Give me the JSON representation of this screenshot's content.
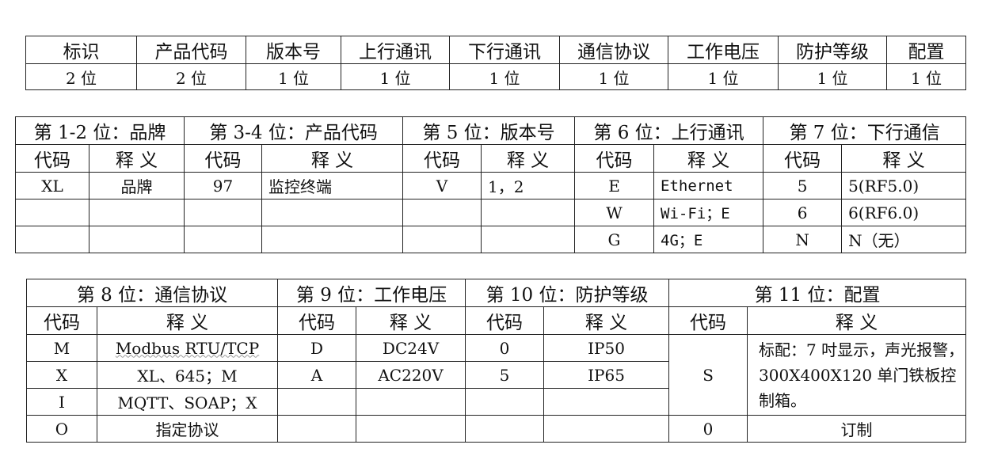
{
  "table1": {
    "headers": [
      "标识",
      "产品代码",
      "版本号",
      "上行通讯",
      "下行通讯",
      "通信协议",
      "工作电压",
      "防护等级",
      "配置"
    ],
    "values": [
      "2 位",
      "2 位",
      "1 位",
      "1 位",
      "1 位",
      "1 位",
      "1 位",
      "1 位",
      "1 位"
    ]
  },
  "table2": {
    "groups": [
      "第 1-2 位：品牌",
      "第 3-4 位：产品代码",
      "第 5 位：版本号",
      "第 6 位：上行通讯",
      "第 7 位：下行通信"
    ],
    "code_label": "代码",
    "meaning_label": "释 义",
    "rows": [
      [
        "XL",
        "品牌",
        "97",
        "监控终端",
        "V",
        "1，2",
        "E",
        "Ethernet",
        "5",
        "5(RF5.0)"
      ],
      [
        "",
        "",
        "",
        "",
        "",
        "",
        "W",
        "Wi-Fi；E",
        "6",
        "6(RF6.0)"
      ],
      [
        "",
        "",
        "",
        "",
        "",
        "",
        "G",
        "4G；E",
        "N",
        "N（无）"
      ]
    ]
  },
  "table3": {
    "groups": [
      "第 8 位：通信协议",
      "第 9 位：工作电压",
      "第 10 位：防护等级",
      "第 11 位：配置"
    ],
    "code_label": "代码",
    "meaning_label": "释 义",
    "protocol": [
      [
        "M",
        "Modbus RTU/TCP"
      ],
      [
        "X",
        "XL、645；M"
      ],
      [
        "I",
        "MQTT、SOAP；X"
      ],
      [
        "O",
        "指定协议"
      ]
    ],
    "voltage": [
      [
        "D",
        "DC24V"
      ],
      [
        "A",
        "AC220V"
      ]
    ],
    "protection": [
      [
        "0",
        "IP50"
      ],
      [
        "5",
        "IP65"
      ]
    ],
    "config": [
      [
        "S",
        "标配：7 吋显示，声光报警，300X400X120 单门铁板控制箱。"
      ],
      [
        "0",
        "订制"
      ]
    ]
  }
}
